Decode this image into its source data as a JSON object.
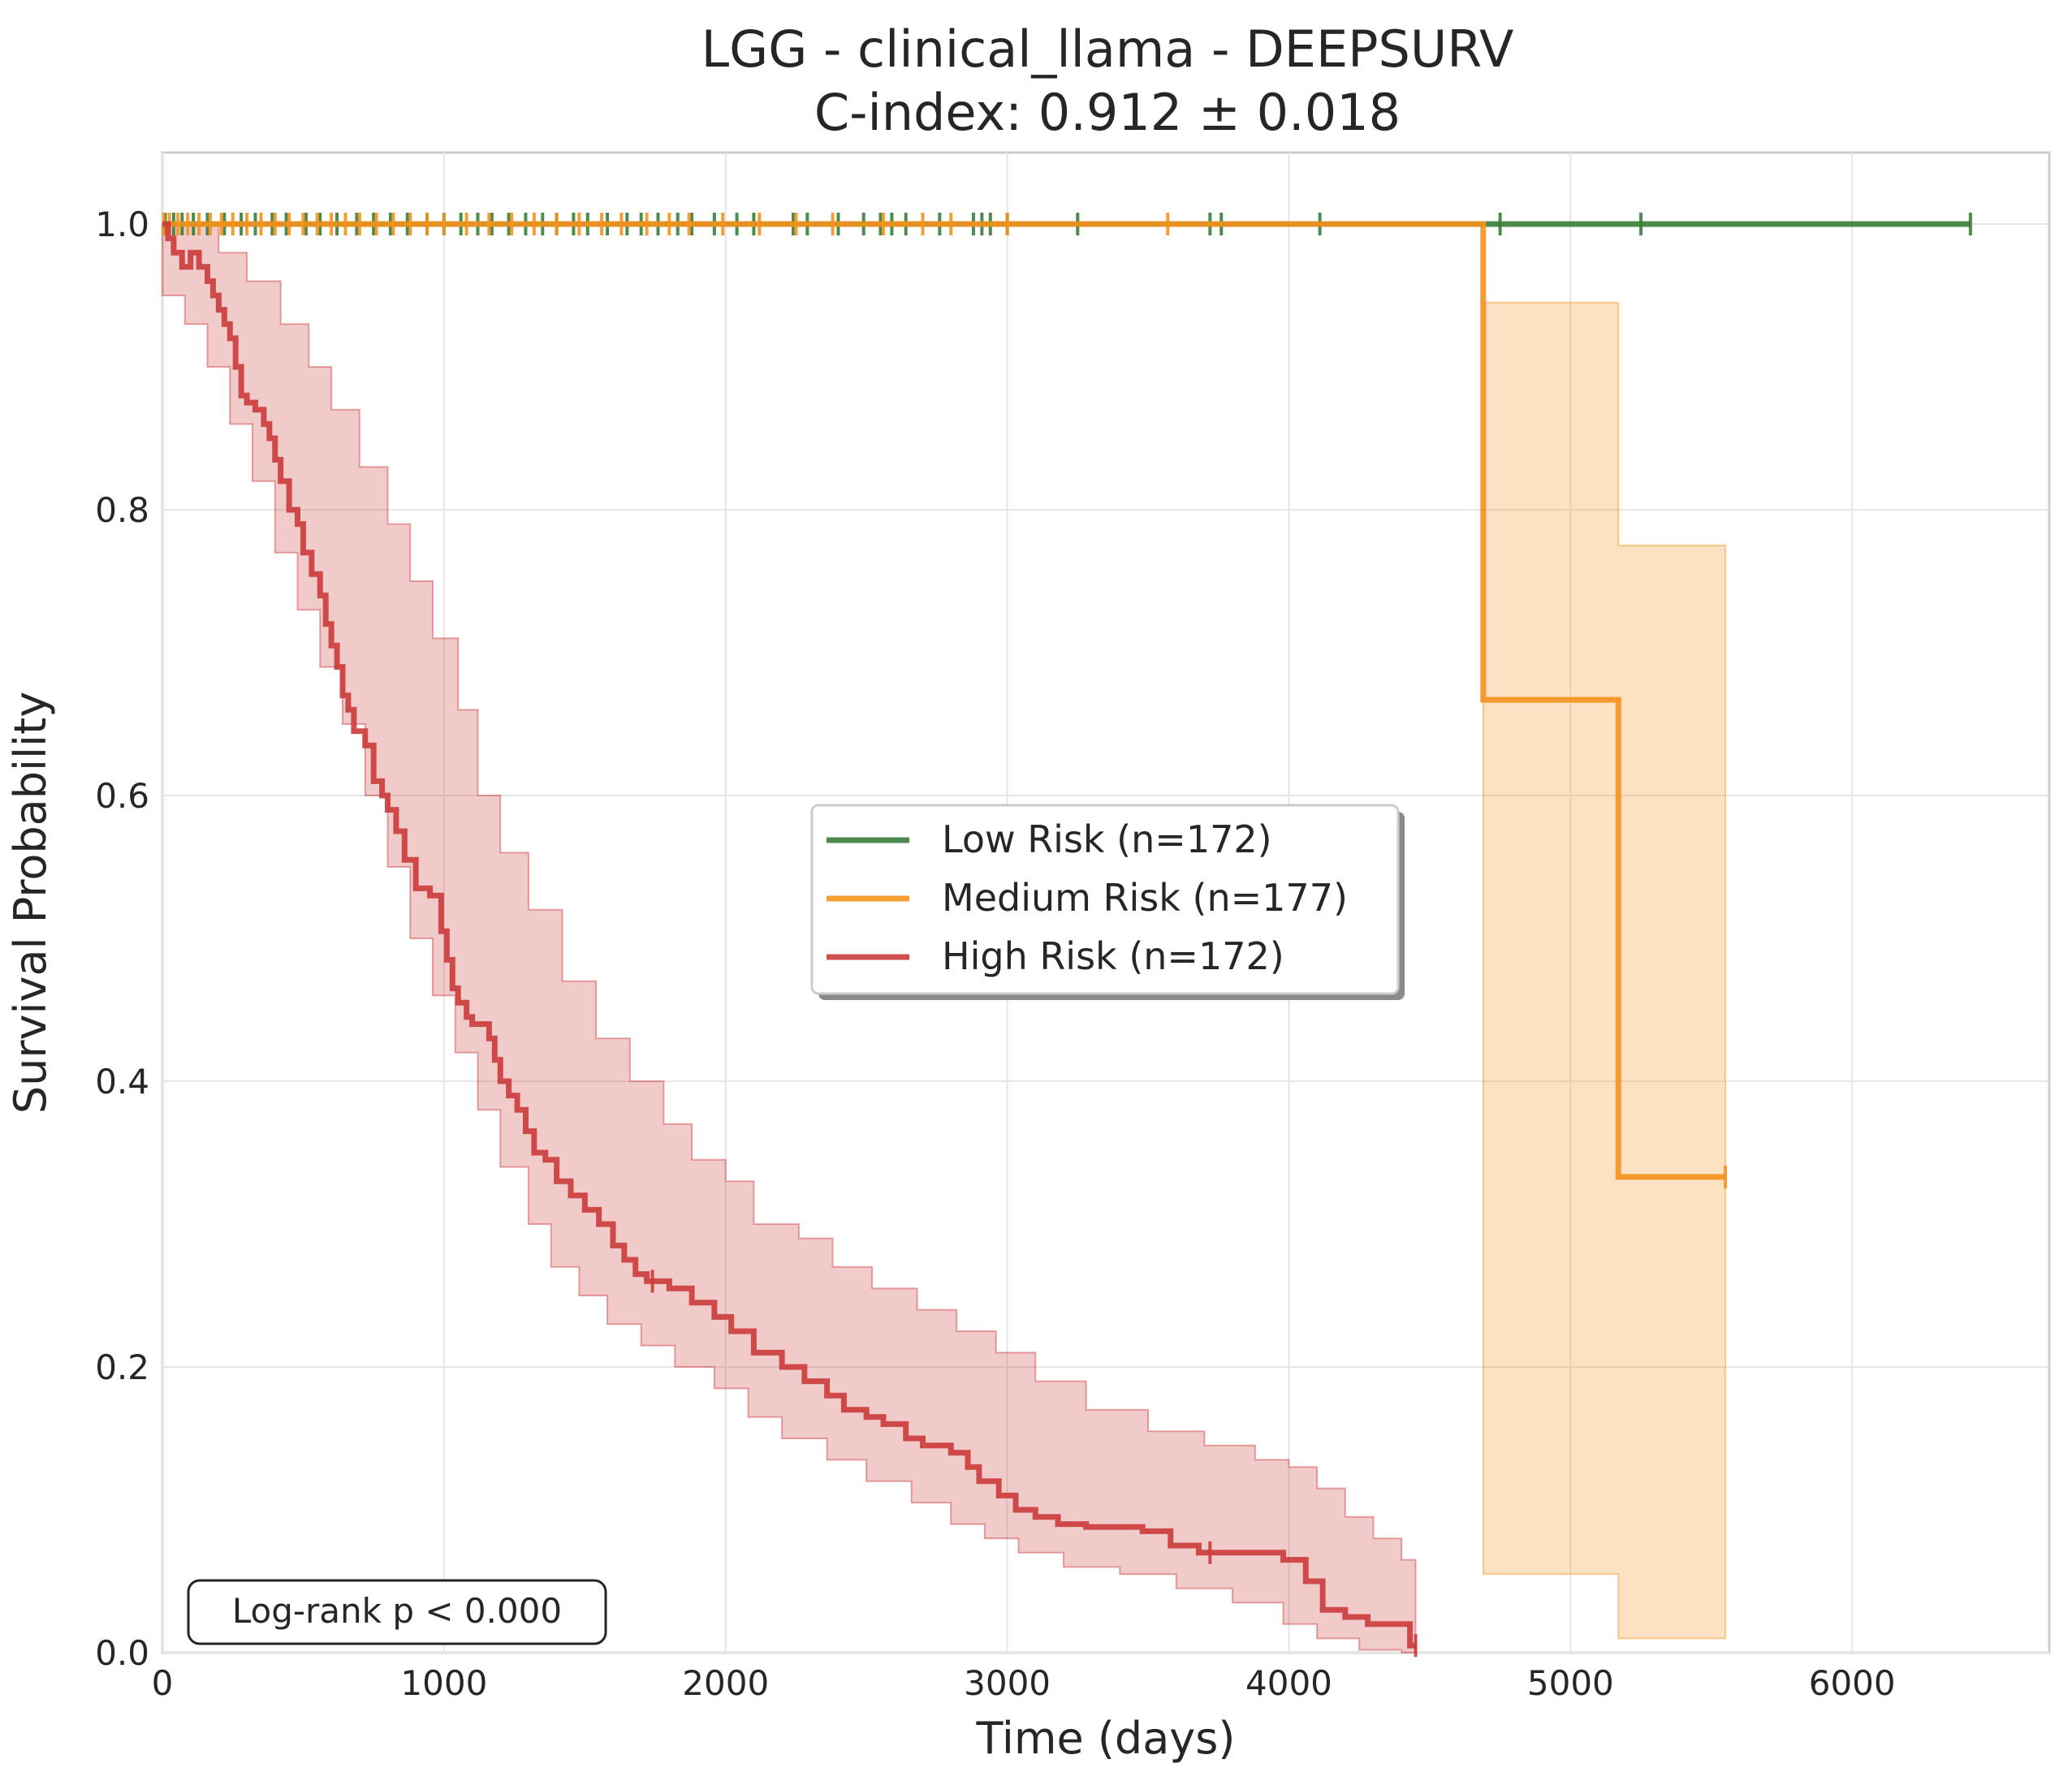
{
  "chart_data": {
    "type": "line",
    "title": "LGG - clinical_llama - DEEPSURV",
    "subtitle": "C-index: 0.912 ± 0.018",
    "xlabel": "Time (days)",
    "ylabel": "Survival Probability",
    "xlim": [
      0,
      6700
    ],
    "ylim": [
      0.0,
      1.05
    ],
    "x_ticks": [
      "0",
      "1000",
      "2000",
      "3000",
      "4000",
      "5000",
      "6000"
    ],
    "y_ticks": [
      "0.0",
      "0.2",
      "0.4",
      "0.6",
      "0.8",
      "1.0"
    ],
    "grid": true,
    "legend_position": "center-right",
    "annotation": "Log-rank p < 0.000",
    "series": [
      {
        "name": "Low Risk (n=172)",
        "color": "#3a7d3a",
        "step": [
          [
            0,
            1.0
          ],
          [
            6420,
            1.0
          ]
        ],
        "censor_x": [
          10,
          40,
          70,
          110,
          160,
          220,
          280,
          330,
          390,
          440,
          510,
          560,
          620,
          690,
          750,
          810,
          870,
          940,
          1000,
          1060,
          1120,
          1170,
          1230,
          1290,
          1350,
          1400,
          1460,
          1510,
          1580,
          1650,
          1700,
          1760,
          1830,
          1880,
          1960,
          2040,
          2100,
          2240,
          2290,
          2400,
          2490,
          2550,
          2590,
          2640,
          2760,
          2880,
          2910,
          2940,
          3000,
          3250,
          3720,
          3760,
          4110,
          4750,
          5250,
          6420
        ]
      },
      {
        "name": "Medium Risk (n=177)",
        "color": "#f5921e",
        "step": [
          [
            0,
            1.0
          ],
          [
            4690,
            1.0
          ],
          [
            4690,
            0.667
          ],
          [
            5170,
            0.667
          ],
          [
            5170,
            0.333
          ],
          [
            5550,
            0.333
          ]
        ],
        "ci_upper": [
          [
            4690,
            0.945
          ],
          [
            5170,
            0.945
          ],
          [
            5170,
            0.775
          ],
          [
            5550,
            0.775
          ]
        ],
        "ci_lower": [
          [
            4690,
            0.055
          ],
          [
            5170,
            0.055
          ],
          [
            5170,
            0.01
          ],
          [
            5550,
            0.01
          ]
        ],
        "censor_x": [
          5,
          25,
          55,
          90,
          130,
          170,
          210,
          250,
          300,
          350,
          400,
          450,
          500,
          550,
          600,
          650,
          700,
          760,
          820,
          880,
          940,
          1000,
          1080,
          1160,
          1240,
          1320,
          1400,
          1480,
          1560,
          1630,
          1720,
          1800,
          1870,
          1990,
          2120,
          2250,
          2380,
          2560,
          2700,
          2800,
          3000,
          3570,
          5550
        ]
      },
      {
        "name": "High Risk (n=172)",
        "color": "#cc3b3b",
        "step": [
          [
            0,
            1.0
          ],
          [
            20,
            0.99
          ],
          [
            40,
            0.98
          ],
          [
            70,
            0.97
          ],
          [
            100,
            0.98
          ],
          [
            130,
            0.97
          ],
          [
            160,
            0.96
          ],
          [
            180,
            0.95
          ],
          [
            200,
            0.94
          ],
          [
            220,
            0.93
          ],
          [
            240,
            0.92
          ],
          [
            260,
            0.9
          ],
          [
            280,
            0.88
          ],
          [
            300,
            0.875
          ],
          [
            330,
            0.87
          ],
          [
            360,
            0.86
          ],
          [
            380,
            0.85
          ],
          [
            400,
            0.835
          ],
          [
            420,
            0.82
          ],
          [
            450,
            0.8
          ],
          [
            480,
            0.79
          ],
          [
            500,
            0.77
          ],
          [
            530,
            0.755
          ],
          [
            560,
            0.74
          ],
          [
            580,
            0.72
          ],
          [
            600,
            0.705
          ],
          [
            620,
            0.69
          ],
          [
            640,
            0.67
          ],
          [
            660,
            0.66
          ],
          [
            680,
            0.645
          ],
          [
            720,
            0.635
          ],
          [
            750,
            0.61
          ],
          [
            780,
            0.6
          ],
          [
            800,
            0.59
          ],
          [
            830,
            0.575
          ],
          [
            860,
            0.555
          ],
          [
            900,
            0.535
          ],
          [
            950,
            0.53
          ],
          [
            990,
            0.505
          ],
          [
            1010,
            0.485
          ],
          [
            1030,
            0.465
          ],
          [
            1050,
            0.455
          ],
          [
            1080,
            0.445
          ],
          [
            1100,
            0.44
          ],
          [
            1160,
            0.43
          ],
          [
            1180,
            0.415
          ],
          [
            1200,
            0.4
          ],
          [
            1230,
            0.39
          ],
          [
            1260,
            0.38
          ],
          [
            1290,
            0.365
          ],
          [
            1320,
            0.35
          ],
          [
            1360,
            0.345
          ],
          [
            1400,
            0.33
          ],
          [
            1450,
            0.32
          ],
          [
            1500,
            0.31
          ],
          [
            1550,
            0.3
          ],
          [
            1600,
            0.285
          ],
          [
            1640,
            0.275
          ],
          [
            1680,
            0.265
          ],
          [
            1720,
            0.26
          ],
          [
            1800,
            0.255
          ],
          [
            1880,
            0.245
          ],
          [
            1960,
            0.235
          ],
          [
            2020,
            0.225
          ],
          [
            2100,
            0.21
          ],
          [
            2200,
            0.2
          ],
          [
            2280,
            0.19
          ],
          [
            2360,
            0.18
          ],
          [
            2420,
            0.17
          ],
          [
            2500,
            0.165
          ],
          [
            2560,
            0.16
          ],
          [
            2640,
            0.15
          ],
          [
            2700,
            0.145
          ],
          [
            2800,
            0.14
          ],
          [
            2860,
            0.13
          ],
          [
            2900,
            0.12
          ],
          [
            2970,
            0.11
          ],
          [
            3030,
            0.1
          ],
          [
            3100,
            0.095
          ],
          [
            3180,
            0.09
          ],
          [
            3280,
            0.088
          ],
          [
            3480,
            0.085
          ],
          [
            3580,
            0.075
          ],
          [
            3680,
            0.07
          ],
          [
            3900,
            0.07
          ],
          [
            3980,
            0.065
          ],
          [
            4060,
            0.05
          ],
          [
            4120,
            0.03
          ],
          [
            4200,
            0.025
          ],
          [
            4280,
            0.02
          ],
          [
            4400,
            0.02
          ],
          [
            4430,
            0.005
          ],
          [
            4450,
            0.005
          ]
        ],
        "ci_upper": [
          [
            0,
            1.0
          ],
          [
            120,
            1.0
          ],
          [
            200,
            0.98
          ],
          [
            300,
            0.96
          ],
          [
            420,
            0.93
          ],
          [
            520,
            0.9
          ],
          [
            600,
            0.87
          ],
          [
            700,
            0.83
          ],
          [
            800,
            0.79
          ],
          [
            880,
            0.75
          ],
          [
            960,
            0.71
          ],
          [
            1050,
            0.66
          ],
          [
            1120,
            0.6
          ],
          [
            1200,
            0.56
          ],
          [
            1300,
            0.52
          ],
          [
            1420,
            0.47
          ],
          [
            1540,
            0.43
          ],
          [
            1660,
            0.4
          ],
          [
            1780,
            0.37
          ],
          [
            1880,
            0.345
          ],
          [
            2000,
            0.33
          ],
          [
            2100,
            0.3
          ],
          [
            2260,
            0.29
          ],
          [
            2380,
            0.27
          ],
          [
            2520,
            0.255
          ],
          [
            2680,
            0.24
          ],
          [
            2820,
            0.225
          ],
          [
            2960,
            0.21
          ],
          [
            3100,
            0.19
          ],
          [
            3280,
            0.17
          ],
          [
            3500,
            0.155
          ],
          [
            3700,
            0.145
          ],
          [
            3880,
            0.135
          ],
          [
            4000,
            0.13
          ],
          [
            4100,
            0.115
          ],
          [
            4200,
            0.095
          ],
          [
            4300,
            0.08
          ],
          [
            4400,
            0.065
          ],
          [
            4450,
            0.05
          ]
        ],
        "ci_lower": [
          [
            0,
            0.97
          ],
          [
            80,
            0.95
          ],
          [
            160,
            0.93
          ],
          [
            240,
            0.9
          ],
          [
            320,
            0.86
          ],
          [
            400,
            0.82
          ],
          [
            480,
            0.77
          ],
          [
            560,
            0.73
          ],
          [
            640,
            0.69
          ],
          [
            720,
            0.65
          ],
          [
            800,
            0.6
          ],
          [
            880,
            0.55
          ],
          [
            960,
            0.5
          ],
          [
            1040,
            0.46
          ],
          [
            1120,
            0.42
          ],
          [
            1200,
            0.38
          ],
          [
            1300,
            0.34
          ],
          [
            1380,
            0.3
          ],
          [
            1480,
            0.27
          ],
          [
            1580,
            0.25
          ],
          [
            1700,
            0.23
          ],
          [
            1820,
            0.215
          ],
          [
            1960,
            0.2
          ],
          [
            2080,
            0.185
          ],
          [
            2200,
            0.165
          ],
          [
            2360,
            0.15
          ],
          [
            2500,
            0.135
          ],
          [
            2660,
            0.12
          ],
          [
            2800,
            0.105
          ],
          [
            2920,
            0.09
          ],
          [
            3040,
            0.08
          ],
          [
            3200,
            0.07
          ],
          [
            3400,
            0.06
          ],
          [
            3600,
            0.055
          ],
          [
            3800,
            0.045
          ],
          [
            3980,
            0.035
          ],
          [
            4100,
            0.02
          ],
          [
            4250,
            0.01
          ],
          [
            4400,
            0.002
          ],
          [
            4450,
            0.0
          ]
        ],
        "censor_x": [
          1740,
          3720,
          4450
        ]
      }
    ]
  }
}
